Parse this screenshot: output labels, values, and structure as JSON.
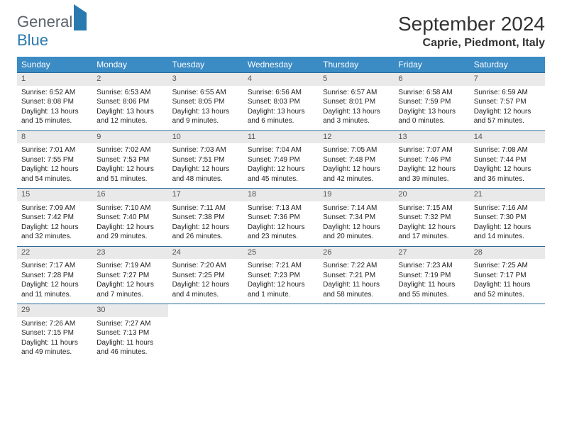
{
  "logo": {
    "part1": "General",
    "part2": "Blue"
  },
  "title": "September 2024",
  "location": "Caprie, Piedmont, Italy",
  "day_headers": [
    "Sunday",
    "Monday",
    "Tuesday",
    "Wednesday",
    "Thursday",
    "Friday",
    "Saturday"
  ],
  "header_bg": "#3b8bc4",
  "daynum_bg": "#e9e9e9",
  "border_color": "#2a6a9a",
  "weeks": [
    [
      {
        "n": "1",
        "sr": "Sunrise: 6:52 AM",
        "ss": "Sunset: 8:08 PM",
        "dl1": "Daylight: 13 hours",
        "dl2": "and 15 minutes."
      },
      {
        "n": "2",
        "sr": "Sunrise: 6:53 AM",
        "ss": "Sunset: 8:06 PM",
        "dl1": "Daylight: 13 hours",
        "dl2": "and 12 minutes."
      },
      {
        "n": "3",
        "sr": "Sunrise: 6:55 AM",
        "ss": "Sunset: 8:05 PM",
        "dl1": "Daylight: 13 hours",
        "dl2": "and 9 minutes."
      },
      {
        "n": "4",
        "sr": "Sunrise: 6:56 AM",
        "ss": "Sunset: 8:03 PM",
        "dl1": "Daylight: 13 hours",
        "dl2": "and 6 minutes."
      },
      {
        "n": "5",
        "sr": "Sunrise: 6:57 AM",
        "ss": "Sunset: 8:01 PM",
        "dl1": "Daylight: 13 hours",
        "dl2": "and 3 minutes."
      },
      {
        "n": "6",
        "sr": "Sunrise: 6:58 AM",
        "ss": "Sunset: 7:59 PM",
        "dl1": "Daylight: 13 hours",
        "dl2": "and 0 minutes."
      },
      {
        "n": "7",
        "sr": "Sunrise: 6:59 AM",
        "ss": "Sunset: 7:57 PM",
        "dl1": "Daylight: 12 hours",
        "dl2": "and 57 minutes."
      }
    ],
    [
      {
        "n": "8",
        "sr": "Sunrise: 7:01 AM",
        "ss": "Sunset: 7:55 PM",
        "dl1": "Daylight: 12 hours",
        "dl2": "and 54 minutes."
      },
      {
        "n": "9",
        "sr": "Sunrise: 7:02 AM",
        "ss": "Sunset: 7:53 PM",
        "dl1": "Daylight: 12 hours",
        "dl2": "and 51 minutes."
      },
      {
        "n": "10",
        "sr": "Sunrise: 7:03 AM",
        "ss": "Sunset: 7:51 PM",
        "dl1": "Daylight: 12 hours",
        "dl2": "and 48 minutes."
      },
      {
        "n": "11",
        "sr": "Sunrise: 7:04 AM",
        "ss": "Sunset: 7:49 PM",
        "dl1": "Daylight: 12 hours",
        "dl2": "and 45 minutes."
      },
      {
        "n": "12",
        "sr": "Sunrise: 7:05 AM",
        "ss": "Sunset: 7:48 PM",
        "dl1": "Daylight: 12 hours",
        "dl2": "and 42 minutes."
      },
      {
        "n": "13",
        "sr": "Sunrise: 7:07 AM",
        "ss": "Sunset: 7:46 PM",
        "dl1": "Daylight: 12 hours",
        "dl2": "and 39 minutes."
      },
      {
        "n": "14",
        "sr": "Sunrise: 7:08 AM",
        "ss": "Sunset: 7:44 PM",
        "dl1": "Daylight: 12 hours",
        "dl2": "and 36 minutes."
      }
    ],
    [
      {
        "n": "15",
        "sr": "Sunrise: 7:09 AM",
        "ss": "Sunset: 7:42 PM",
        "dl1": "Daylight: 12 hours",
        "dl2": "and 32 minutes."
      },
      {
        "n": "16",
        "sr": "Sunrise: 7:10 AM",
        "ss": "Sunset: 7:40 PM",
        "dl1": "Daylight: 12 hours",
        "dl2": "and 29 minutes."
      },
      {
        "n": "17",
        "sr": "Sunrise: 7:11 AM",
        "ss": "Sunset: 7:38 PM",
        "dl1": "Daylight: 12 hours",
        "dl2": "and 26 minutes."
      },
      {
        "n": "18",
        "sr": "Sunrise: 7:13 AM",
        "ss": "Sunset: 7:36 PM",
        "dl1": "Daylight: 12 hours",
        "dl2": "and 23 minutes."
      },
      {
        "n": "19",
        "sr": "Sunrise: 7:14 AM",
        "ss": "Sunset: 7:34 PM",
        "dl1": "Daylight: 12 hours",
        "dl2": "and 20 minutes."
      },
      {
        "n": "20",
        "sr": "Sunrise: 7:15 AM",
        "ss": "Sunset: 7:32 PM",
        "dl1": "Daylight: 12 hours",
        "dl2": "and 17 minutes."
      },
      {
        "n": "21",
        "sr": "Sunrise: 7:16 AM",
        "ss": "Sunset: 7:30 PM",
        "dl1": "Daylight: 12 hours",
        "dl2": "and 14 minutes."
      }
    ],
    [
      {
        "n": "22",
        "sr": "Sunrise: 7:17 AM",
        "ss": "Sunset: 7:28 PM",
        "dl1": "Daylight: 12 hours",
        "dl2": "and 11 minutes."
      },
      {
        "n": "23",
        "sr": "Sunrise: 7:19 AM",
        "ss": "Sunset: 7:27 PM",
        "dl1": "Daylight: 12 hours",
        "dl2": "and 7 minutes."
      },
      {
        "n": "24",
        "sr": "Sunrise: 7:20 AM",
        "ss": "Sunset: 7:25 PM",
        "dl1": "Daylight: 12 hours",
        "dl2": "and 4 minutes."
      },
      {
        "n": "25",
        "sr": "Sunrise: 7:21 AM",
        "ss": "Sunset: 7:23 PM",
        "dl1": "Daylight: 12 hours",
        "dl2": "and 1 minute."
      },
      {
        "n": "26",
        "sr": "Sunrise: 7:22 AM",
        "ss": "Sunset: 7:21 PM",
        "dl1": "Daylight: 11 hours",
        "dl2": "and 58 minutes."
      },
      {
        "n": "27",
        "sr": "Sunrise: 7:23 AM",
        "ss": "Sunset: 7:19 PM",
        "dl1": "Daylight: 11 hours",
        "dl2": "and 55 minutes."
      },
      {
        "n": "28",
        "sr": "Sunrise: 7:25 AM",
        "ss": "Sunset: 7:17 PM",
        "dl1": "Daylight: 11 hours",
        "dl2": "and 52 minutes."
      }
    ],
    [
      {
        "n": "29",
        "sr": "Sunrise: 7:26 AM",
        "ss": "Sunset: 7:15 PM",
        "dl1": "Daylight: 11 hours",
        "dl2": "and 49 minutes."
      },
      {
        "n": "30",
        "sr": "Sunrise: 7:27 AM",
        "ss": "Sunset: 7:13 PM",
        "dl1": "Daylight: 11 hours",
        "dl2": "and 46 minutes."
      },
      null,
      null,
      null,
      null,
      null
    ]
  ]
}
